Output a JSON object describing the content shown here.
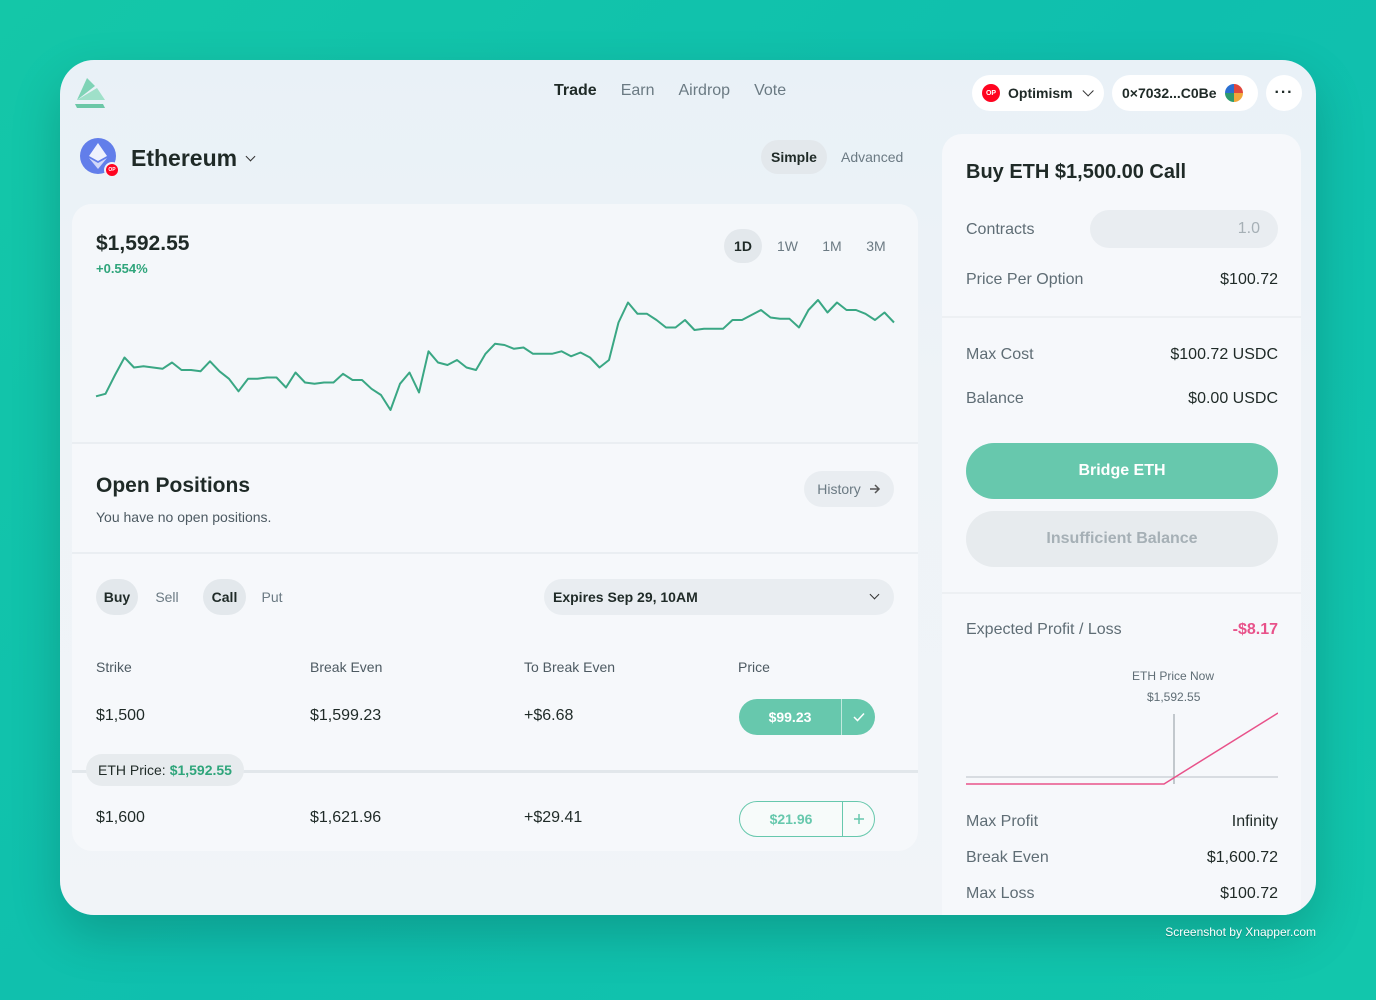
{
  "nav": {
    "items": [
      "Trade",
      "Earn",
      "Airdrop",
      "Vote"
    ],
    "active": "Trade"
  },
  "network": {
    "label": "Optimism",
    "badge": "OP"
  },
  "wallet": {
    "address": "0×7032...C0Be"
  },
  "more_label": "···",
  "asset": {
    "name": "Ethereum",
    "badge": "OP"
  },
  "modes": {
    "simple": "Simple",
    "advanced": "Advanced",
    "active": "Simple"
  },
  "price": {
    "value": "$1,592.55",
    "change": "+0.554%"
  },
  "ranges": [
    "1D",
    "1W",
    "1M",
    "3M"
  ],
  "active_range": "1D",
  "chart_data": {
    "type": "line",
    "series": [
      {
        "values": [
          1,
          3,
          18,
          32,
          24,
          25,
          24,
          23,
          28,
          22,
          22,
          21,
          29,
          21,
          15,
          5,
          15,
          15,
          16,
          16,
          8,
          20,
          12,
          11,
          12,
          12,
          19,
          14,
          14,
          7,
          2,
          -10,
          11,
          20,
          4,
          37,
          28,
          26,
          30,
          24,
          22,
          35,
          43,
          42,
          39,
          40,
          35,
          35,
          35,
          37,
          33,
          36,
          32,
          24,
          30,
          60,
          76,
          67,
          67,
          62,
          56,
          56,
          62,
          54,
          55,
          55,
          55,
          62,
          62,
          66,
          70,
          64,
          63,
          63,
          56,
          70,
          78,
          68,
          76,
          70,
          70,
          67,
          62,
          68,
          60
        ]
      }
    ],
    "color": "#3aa784"
  },
  "positions": {
    "title": "Open Positions",
    "empty": "You have no open positions.",
    "history": "History"
  },
  "filters": {
    "buy": "Buy",
    "sell": "Sell",
    "call": "Call",
    "put": "Put",
    "expiry": "Expires Sep 29, 10AM"
  },
  "table": {
    "headers": [
      "Strike",
      "Break Even",
      "To Break Even",
      "Price"
    ],
    "rows": [
      {
        "strike": "$1,500",
        "break_even": "$1,599.23",
        "to_break_even": "+$6.68",
        "price": "$99.23",
        "selected": true
      },
      {
        "strike": "$1,600",
        "break_even": "$1,621.96",
        "to_break_even": "+$29.41",
        "price": "$21.96",
        "selected": false
      }
    ],
    "eth_price_label": "ETH Price:",
    "eth_price_value": "$1,592.55"
  },
  "order": {
    "title": "Buy ETH $1,500.00 Call",
    "contracts_label": "Contracts",
    "contracts_placeholder": "1.0",
    "price_per_option_label": "Price Per Option",
    "price_per_option": "$100.72",
    "max_cost_label": "Max Cost",
    "max_cost": "$100.72 USDC",
    "balance_label": "Balance",
    "balance": "$0.00 USDC",
    "bridge_button": "Bridge ETH",
    "insufficient_button": "Insufficient Balance",
    "expected_label": "Expected Profit / Loss",
    "expected_value": "-$8.17",
    "eth_now_label": "ETH Price Now",
    "eth_now_value": "$1,592.55",
    "max_profit_label": "Max Profit",
    "max_profit": "Infinity",
    "break_even_label": "Break Even",
    "break_even": "$1,600.72",
    "max_loss_label": "Max Loss",
    "max_loss": "$100.72"
  },
  "watermark": "Screenshot by Xnapper.com",
  "colors": {
    "accent": "#67c8ad",
    "positive": "#2fa57b",
    "negative": "#e8528a",
    "background": "#0fc4ac"
  }
}
